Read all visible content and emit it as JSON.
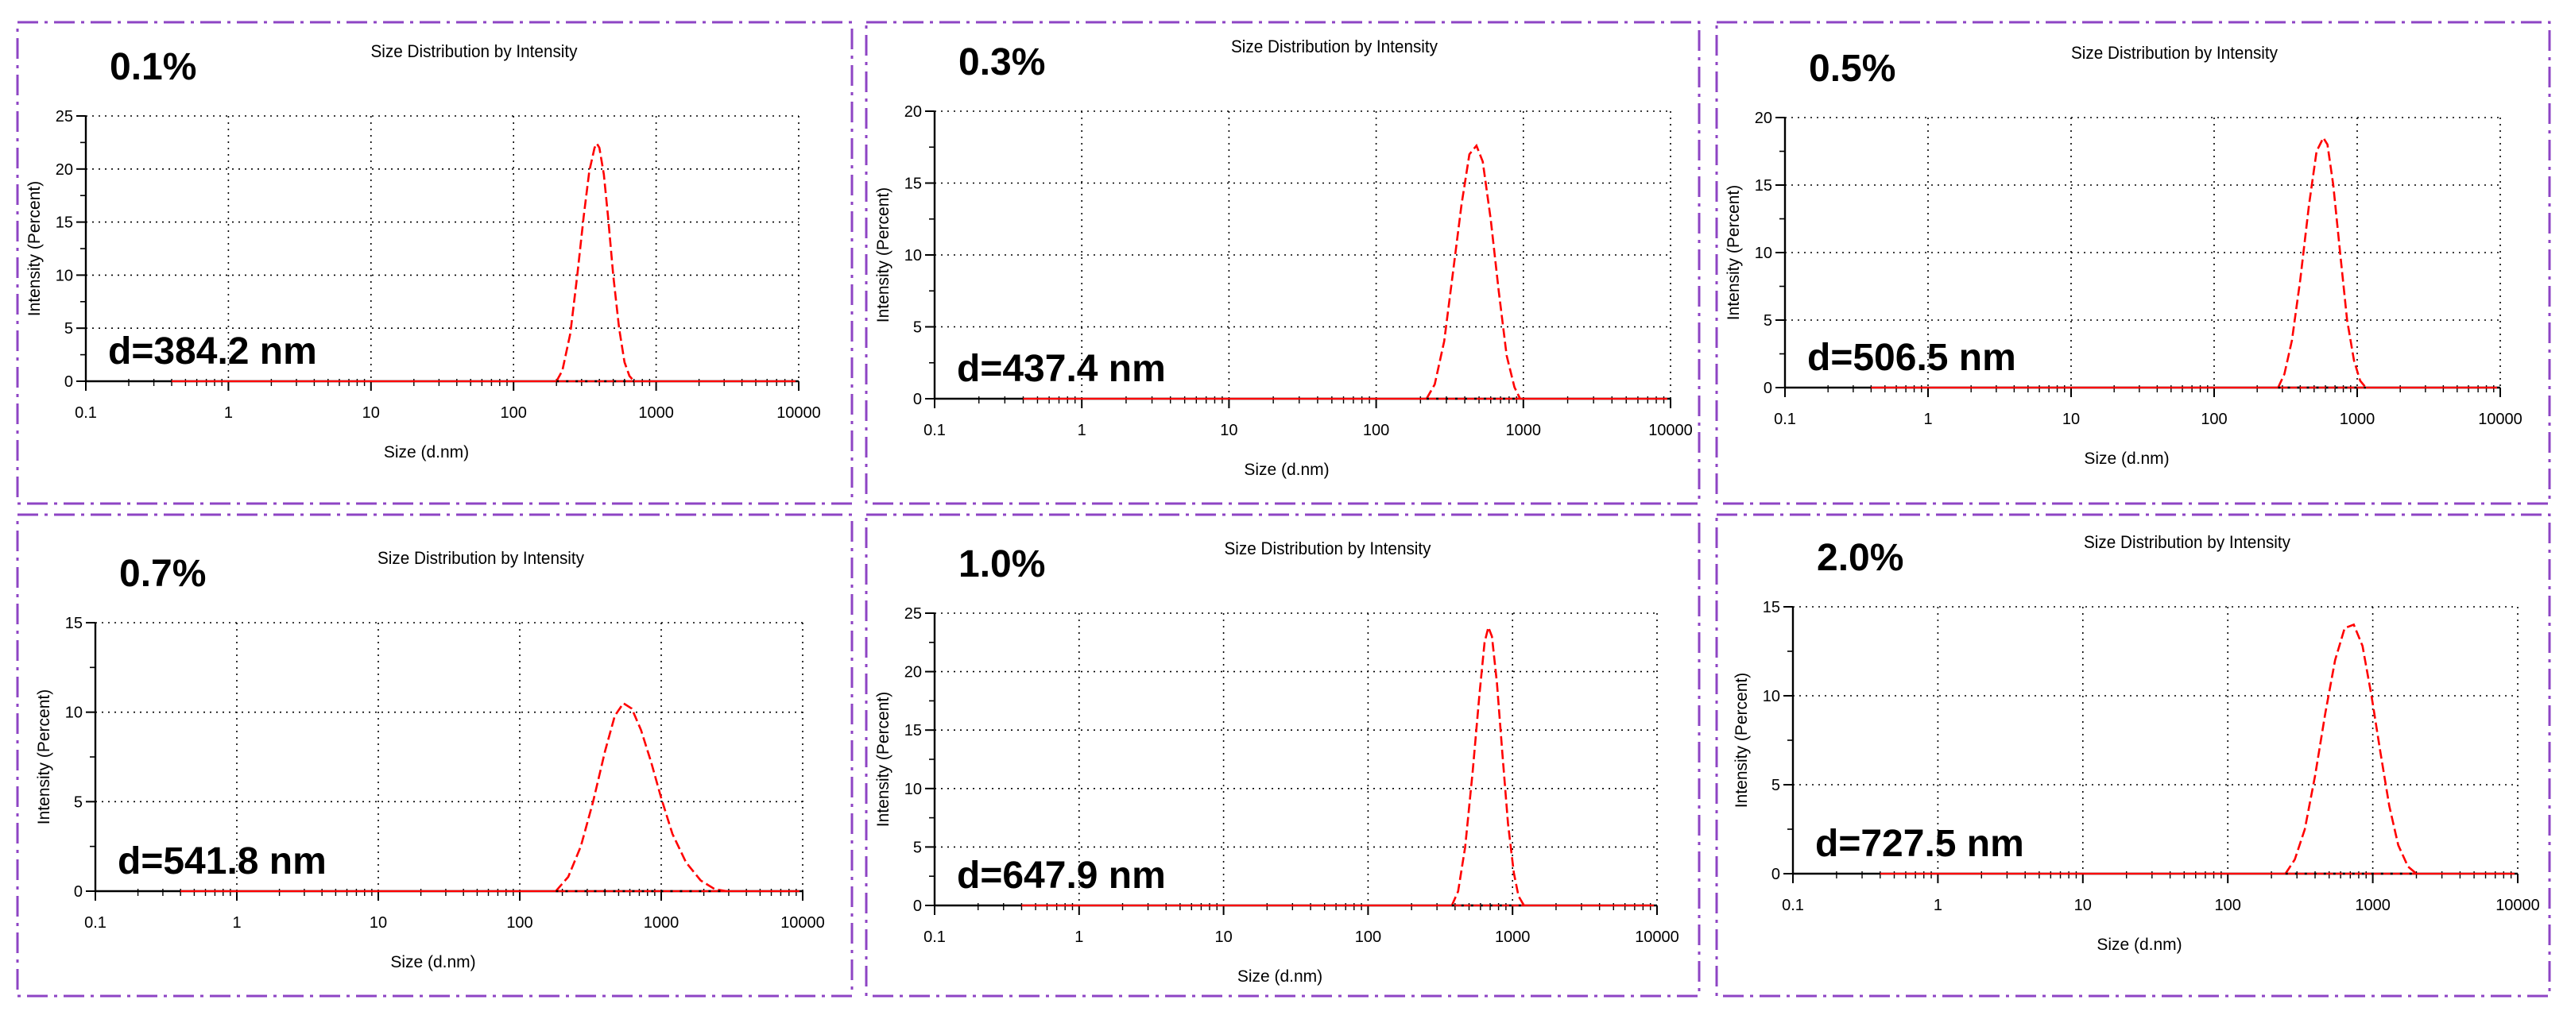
{
  "figure": {
    "panel_border_color": "#8e44c4",
    "curve_color": "#ff0000",
    "axis_color": "#000000"
  },
  "chart_data": [
    {
      "type": "line",
      "concentration_label": "0.1%",
      "diameter_label": "d=384.2 nm",
      "title": "Size Distribution by Intensity",
      "xlabel": "Size (d.nm)",
      "ylabel": "Intensity (Percent)",
      "x_scale": "log",
      "xlim": [
        0.1,
        10000
      ],
      "ylim": [
        0,
        25
      ],
      "x_ticks": [
        "0.1",
        "1",
        "10",
        "100",
        "1000",
        "10000"
      ],
      "y_ticks": [
        "0",
        "5",
        "10",
        "15",
        "20",
        "25"
      ],
      "grid": true,
      "series": [
        {
          "x": [
            200,
            220,
            250,
            280,
            310,
            340,
            370,
            384,
            400,
            430,
            460,
            500,
            550,
            600,
            650,
            700
          ],
          "y": [
            0,
            1.0,
            4.5,
            10.0,
            15.5,
            19.8,
            22.0,
            22.4,
            22.0,
            19.5,
            15.5,
            10.0,
            5.0,
            1.8,
            0.5,
            0
          ]
        }
      ]
    },
    {
      "type": "line",
      "concentration_label": "0.3%",
      "diameter_label": "d=437.4 nm",
      "title": "Size Distribution by Intensity",
      "xlabel": "Size (d.nm)",
      "ylabel": "Intensity (Percent)",
      "x_scale": "log",
      "xlim": [
        0.1,
        10000
      ],
      "ylim": [
        0,
        20
      ],
      "x_ticks": [
        "0.1",
        "1",
        "10",
        "100",
        "1000",
        "10000"
      ],
      "y_ticks": [
        "0",
        "5",
        "10",
        "15",
        "20"
      ],
      "grid": true,
      "series": [
        {
          "x": [
            220,
            250,
            290,
            330,
            380,
            430,
            480,
            530,
            600,
            680,
            770,
            870,
            950
          ],
          "y": [
            0,
            1.0,
            4.0,
            8.5,
            13.5,
            17.0,
            17.6,
            16.5,
            12.5,
            7.5,
            3.0,
            0.8,
            0
          ]
        }
      ]
    },
    {
      "type": "line",
      "concentration_label": "0.5%",
      "diameter_label": "d=506.5 nm",
      "title": "Size Distribution by Intensity",
      "xlabel": "Size (d.nm)",
      "ylabel": "Intensity (Percent)",
      "x_scale": "log",
      "xlim": [
        0.1,
        10000
      ],
      "ylim": [
        0,
        20
      ],
      "x_ticks": [
        "0.1",
        "1",
        "10",
        "100",
        "1000",
        "10000"
      ],
      "y_ticks": [
        "0",
        "5",
        "10",
        "15",
        "20"
      ],
      "grid": true,
      "series": [
        {
          "x": [
            280,
            310,
            350,
            400,
            460,
            520,
            580,
            620,
            680,
            760,
            850,
            950,
            1050,
            1150
          ],
          "y": [
            0,
            1.0,
            3.5,
            8.0,
            13.5,
            17.5,
            18.5,
            18.0,
            15.0,
            10.0,
            5.0,
            2.0,
            0.5,
            0
          ]
        }
      ]
    },
    {
      "type": "line",
      "concentration_label": "0.7%",
      "diameter_label": "d=541.8 nm",
      "title": "Size Distribution by Intensity",
      "xlabel": "Size (d.nm)",
      "ylabel": "Intensity (Percent)",
      "x_scale": "log",
      "xlim": [
        0.1,
        10000
      ],
      "ylim": [
        0,
        15
      ],
      "x_ticks": [
        "0.1",
        "1",
        "10",
        "100",
        "1000",
        "10000"
      ],
      "y_ticks": [
        "0",
        "5",
        "10",
        "15"
      ],
      "grid": true,
      "series": [
        {
          "x": [
            180,
            220,
            270,
            330,
            400,
            470,
            540,
            620,
            720,
            850,
            1000,
            1200,
            1500,
            1900,
            2400,
            2900
          ],
          "y": [
            0,
            0.8,
            2.5,
            5.0,
            7.8,
            9.8,
            10.5,
            10.2,
            9.0,
            7.2,
            5.2,
            3.2,
            1.6,
            0.6,
            0.1,
            0
          ]
        }
      ]
    },
    {
      "type": "line",
      "concentration_label": "1.0%",
      "diameter_label": "d=647.9 nm",
      "title": "Size Distribution by Intensity",
      "xlabel": "Size (d.nm)",
      "ylabel": "Intensity (Percent)",
      "x_scale": "log",
      "xlim": [
        0.1,
        10000
      ],
      "ylim": [
        0,
        25
      ],
      "x_ticks": [
        "0.1",
        "1",
        "10",
        "100",
        "1000",
        "10000"
      ],
      "y_ticks": [
        "0",
        "5",
        "10",
        "15",
        "20",
        "25"
      ],
      "grid": true,
      "series": [
        {
          "x": [
            380,
            420,
            470,
            530,
            590,
            640,
            680,
            720,
            780,
            850,
            930,
            1020,
            1100,
            1200
          ],
          "y": [
            0,
            1.2,
            5.0,
            11.5,
            18.0,
            22.5,
            23.8,
            23.0,
            19.0,
            13.0,
            7.0,
            2.8,
            0.8,
            0
          ]
        }
      ]
    },
    {
      "type": "line",
      "concentration_label": "2.0%",
      "diameter_label": "d=727.5 nm",
      "title": "Size Distribution by Intensity",
      "xlabel": "Size (d.nm)",
      "ylabel": "Intensity (Percent)",
      "x_scale": "log",
      "xlim": [
        0.1,
        10000
      ],
      "ylim": [
        0,
        15
      ],
      "x_ticks": [
        "0.1",
        "1",
        "10",
        "100",
        "1000",
        "10000"
      ],
      "y_ticks": [
        "0",
        "5",
        "10",
        "15"
      ],
      "grid": true,
      "series": [
        {
          "x": [
            250,
            290,
            340,
            400,
            470,
            550,
            640,
            740,
            850,
            980,
            1130,
            1300,
            1500,
            1750,
            2000
          ],
          "y": [
            0,
            0.8,
            2.5,
            5.5,
            9.0,
            12.0,
            13.8,
            14.0,
            12.8,
            10.0,
            6.8,
            3.8,
            1.6,
            0.4,
            0
          ]
        }
      ]
    }
  ]
}
